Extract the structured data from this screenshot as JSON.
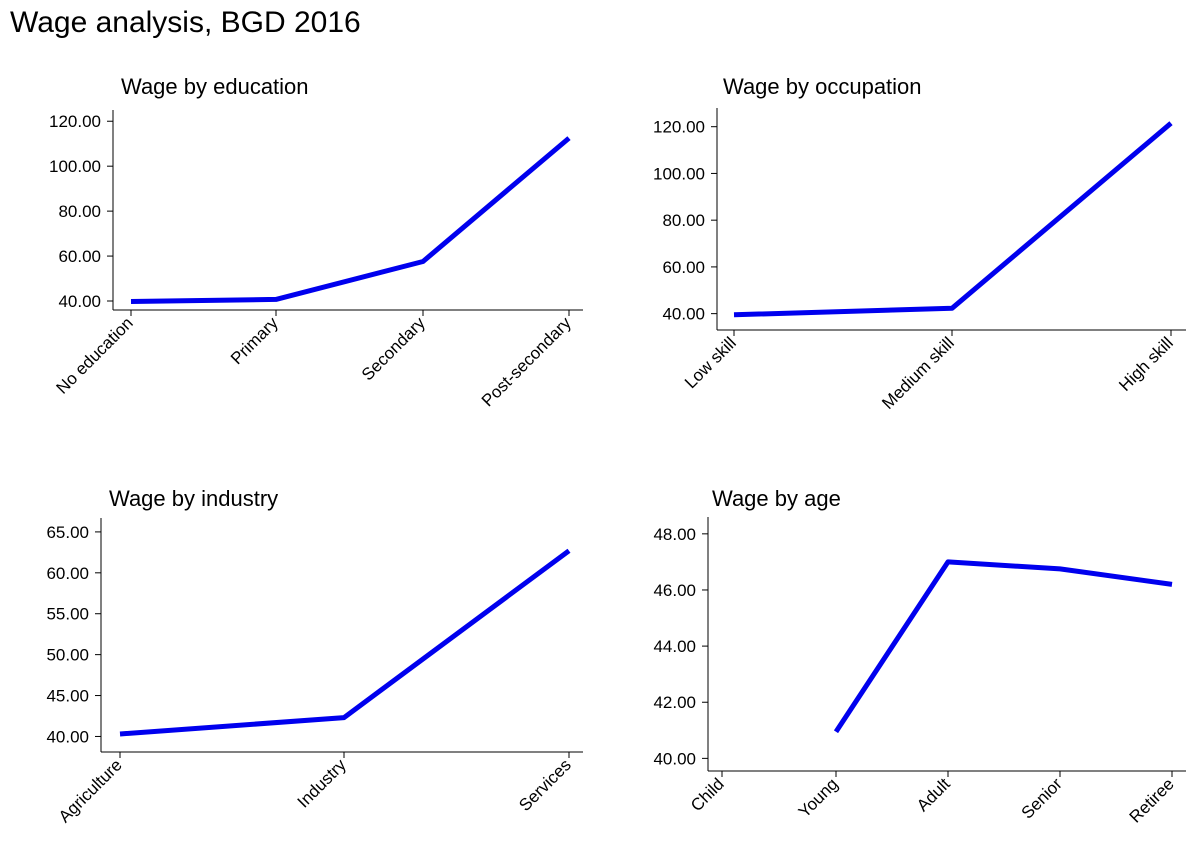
{
  "page_title": "Wage analysis, BGD 2016",
  "series_color": "#0000ee",
  "chart_data": [
    {
      "type": "line",
      "title": "Wage by education",
      "categories": [
        "No education",
        "Primary",
        "Secondary",
        "Post-secondary"
      ],
      "values": [
        39.8,
        40.7,
        57.6,
        112.5
      ],
      "y_ticks": [
        "40.00",
        "60.00",
        "80.00",
        "100.00",
        "120.00"
      ],
      "ylim": [
        36,
        125
      ],
      "xlabel": "",
      "ylabel": "",
      "grid": false
    },
    {
      "type": "line",
      "title": "Wage by occupation",
      "categories": [
        "Low skill",
        "Medium skill",
        "High skill"
      ],
      "values": [
        39.5,
        42.3,
        121.5
      ],
      "y_ticks": [
        "40.00",
        "60.00",
        "80.00",
        "100.00",
        "120.00"
      ],
      "ylim": [
        33,
        128
      ],
      "xlabel": "",
      "ylabel": "",
      "grid": false
    },
    {
      "type": "line",
      "title": "Wage by industry",
      "categories": [
        "Agriculture",
        "Industry",
        "Services"
      ],
      "values": [
        40.3,
        42.3,
        62.7
      ],
      "y_ticks": [
        "40.00",
        "45.00",
        "50.00",
        "55.00",
        "60.00",
        "65.00"
      ],
      "ylim": [
        38.1,
        66.7
      ],
      "xlabel": "",
      "ylabel": "",
      "grid": false
    },
    {
      "type": "line",
      "title": "Wage by age",
      "categories": [
        "Child",
        "Young",
        "Adult",
        "Senior",
        "Retiree"
      ],
      "values": [
        null,
        40.95,
        47.0,
        46.75,
        46.2
      ],
      "y_ticks": [
        "40.00",
        "42.00",
        "44.00",
        "46.00",
        "48.00"
      ],
      "ylim": [
        39.55,
        48.6
      ],
      "xlabel": "",
      "ylabel": "",
      "grid": false
    }
  ]
}
